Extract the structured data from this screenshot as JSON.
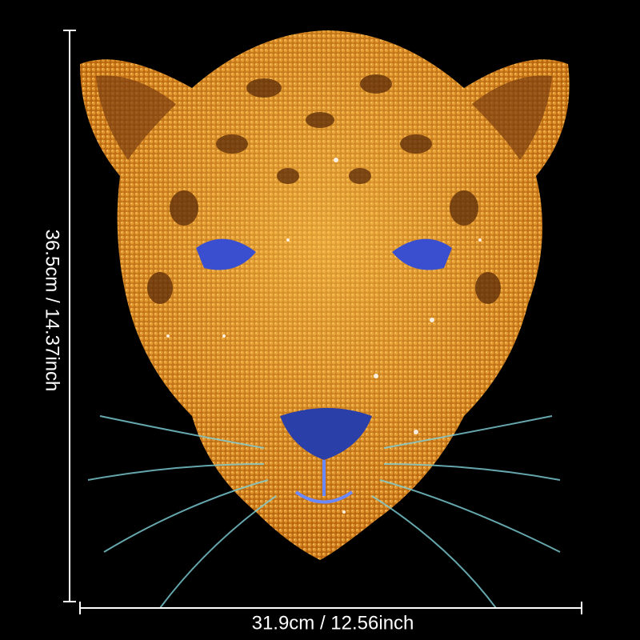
{
  "dimensions": {
    "height": "36.5cm / 14.37inch",
    "width": "31.9cm / 12.56inch"
  }
}
